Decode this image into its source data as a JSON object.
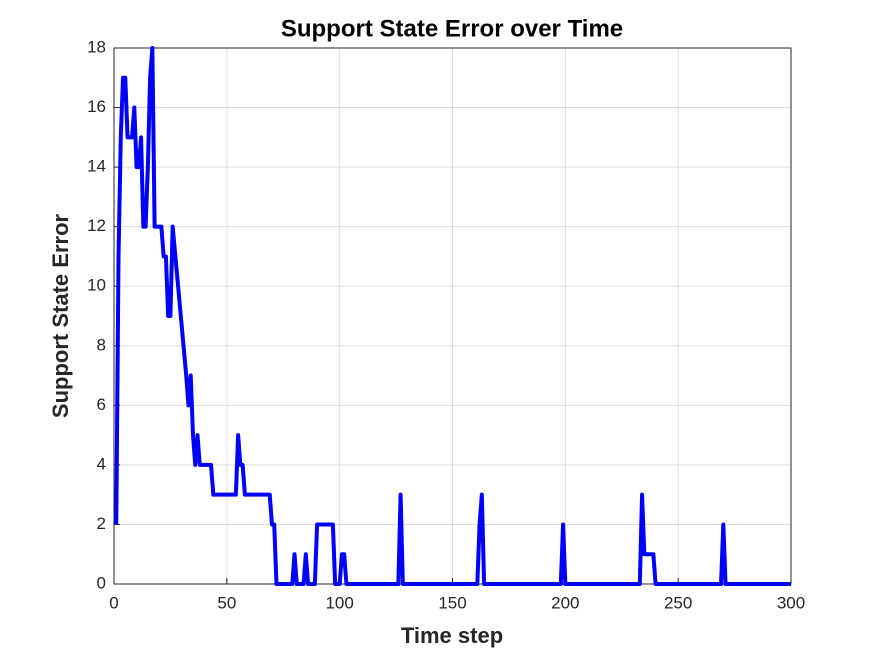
{
  "chart_data": {
    "type": "line",
    "title": "Support State Error over Time",
    "xlabel": "Time step",
    "ylabel": "Support State Error",
    "x": [
      1,
      2,
      3,
      4,
      5,
      6,
      8,
      9,
      10,
      11,
      12,
      13,
      14,
      15,
      16,
      17,
      18,
      21,
      22,
      23,
      24,
      25,
      26,
      32,
      33,
      34,
      35,
      36,
      37,
      38,
      43,
      44,
      54,
      55,
      56,
      57,
      58,
      69,
      70,
      71,
      72,
      79,
      80,
      81,
      84,
      85,
      86,
      89,
      90,
      97,
      98,
      100,
      101,
      102,
      103,
      126,
      127,
      128,
      161,
      162,
      163,
      164,
      198,
      199,
      200,
      233,
      234,
      235,
      239,
      240,
      269,
      270,
      271,
      300
    ],
    "series": [
      {
        "color": "#0000ff",
        "values": [
          2,
          11,
          15,
          17,
          17,
          15,
          15,
          16,
          14,
          14,
          15,
          12,
          12,
          14,
          17,
          18,
          12,
          12,
          11,
          11,
          9,
          9,
          12,
          7,
          6,
          7,
          5,
          4,
          5,
          4,
          4,
          3,
          3,
          5,
          4,
          4,
          3,
          3,
          2,
          2,
          0,
          0,
          1,
          0,
          0,
          1,
          0,
          0,
          2,
          2,
          0,
          0,
          1,
          1,
          0,
          0,
          3,
          0,
          0,
          2,
          3,
          0,
          0,
          2,
          0,
          0,
          3,
          1,
          1,
          0,
          0,
          2,
          0,
          0
        ]
      }
    ],
    "xlim": [
      0,
      300
    ],
    "xticks": [
      0,
      50,
      100,
      150,
      200,
      250,
      300
    ],
    "ylim": [
      0,
      18
    ],
    "yticks": [
      0,
      2,
      4,
      6,
      8,
      10,
      12,
      14,
      16,
      18
    ],
    "grid": true
  }
}
